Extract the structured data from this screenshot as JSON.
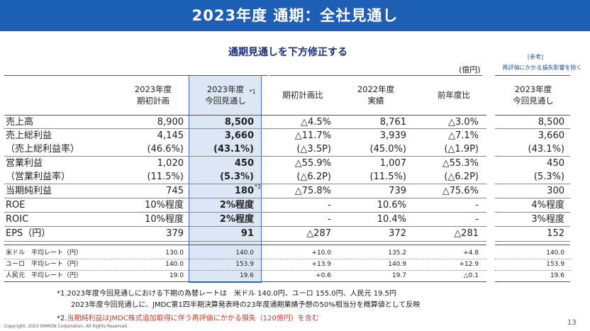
{
  "header": {
    "title": "2023年度 通期：全社見通し"
  },
  "subtitle": "通期見通しを下方修正する",
  "unit": "(億円)",
  "reference": {
    "label": "[参考]",
    "note": "再評価にかかる損失影響を除く"
  },
  "columns": {
    "plan": "2023年度\n期初計画",
    "forecast": "2023年度\n今回見通し",
    "forecast_mark": "*1",
    "vs_plan": "期初計画比",
    "actual_2022": "2022年度\n実績",
    "yoy": "前年度比",
    "ref_forecast": "2023年度\n今回見通し"
  },
  "rows": [
    {
      "label": "売上高",
      "plan": "8,900",
      "forecast": "8,500",
      "vs_plan": "△4.5%",
      "actual": "8,761",
      "yoy": "△3.0%",
      "ref": "8,500"
    },
    {
      "label": "売上総利益",
      "plan": "4,145",
      "forecast": "3,660",
      "vs_plan": "△11.7%",
      "actual": "3,939",
      "yoy": "△7.1%",
      "ref": "3,660"
    },
    {
      "label": "（売上総利益率）",
      "plan": "(46.6%)",
      "forecast": "(43.1%)",
      "vs_plan": "(△3.5P)",
      "actual": "(45.0%)",
      "yoy": "(△1.9P)",
      "ref": "(43.1%)"
    },
    {
      "label": "営業利益",
      "plan": "1,020",
      "forecast": "450",
      "vs_plan": "△55.9%",
      "actual": "1,007",
      "yoy": "△55.3%",
      "ref": "450"
    },
    {
      "label": "（営業利益率）",
      "plan": "(11.5%)",
      "forecast": "(5.3%)",
      "vs_plan": "(△6.2P)",
      "actual": "(11.5%)",
      "yoy": "(△6.2P)",
      "ref": "(5.3%)"
    },
    {
      "label": "当期純利益",
      "plan": "745",
      "forecast": "180",
      "forecast_mark": "*2",
      "vs_plan": "△75.8%",
      "actual": "739",
      "yoy": "△75.6%",
      "ref": "300"
    },
    {
      "label": "ROE",
      "plan": "10%程度",
      "forecast": "2%程度",
      "vs_plan": "-",
      "actual": "10.6%",
      "yoy": "-",
      "ref": "4%程度"
    },
    {
      "label": "ROIC",
      "plan": "10%程度",
      "forecast": "2%程度",
      "vs_plan": "-",
      "actual": "10.4%",
      "yoy": "-",
      "ref": "3%程度"
    },
    {
      "label": "EPS（円）",
      "plan": "379",
      "forecast": "91",
      "vs_plan": "△287",
      "actual": "372",
      "yoy": "△281",
      "ref": "152"
    }
  ],
  "fx_rows": [
    {
      "label": "米ドル　平均レート（円）",
      "plan": "130.0",
      "forecast": "140.0",
      "vs_plan": "+10.0",
      "actual": "135.2",
      "yoy": "+4.8",
      "ref": "140.0"
    },
    {
      "label": "ユーロ　平均レート（円）",
      "plan": "140.0",
      "forecast": "153.9",
      "vs_plan": "+13.9",
      "actual": "140.9",
      "yoy": "+12.9",
      "ref": "153.9"
    },
    {
      "label": "人民元　平均レート（円）",
      "plan": "19.0",
      "forecast": "19.6",
      "vs_plan": "+0.6",
      "actual": "19.7",
      "yoy": "△0.1",
      "ref": "19.6"
    }
  ],
  "notes": {
    "note1_line1": "*1.2023年度今回見通しにおける下期の為替レートは　米ドル 140.0円、ユーロ 155.0円、人民元 19.5円",
    "note1_line2": "2023年度今回見通しに、JMDC第1四半期決算発表時の23年度通期業績予想の50%相当分を概算値として反映",
    "note2_mark": "*2.",
    "note2_text": "当期純利益はJMDC株式追加取得に伴う再評価にかかる損失（120億円）を含む"
  },
  "footer": {
    "copyright": "Copyright: 2023 OMRON Corporation. All Rights Reserved.",
    "page": "13"
  },
  "colors": {
    "header_bg": "#1d5fb4",
    "highlight_bg": "#dde6f4",
    "note_red": "#c0392b",
    "subtitle": "#1a2f7a"
  }
}
